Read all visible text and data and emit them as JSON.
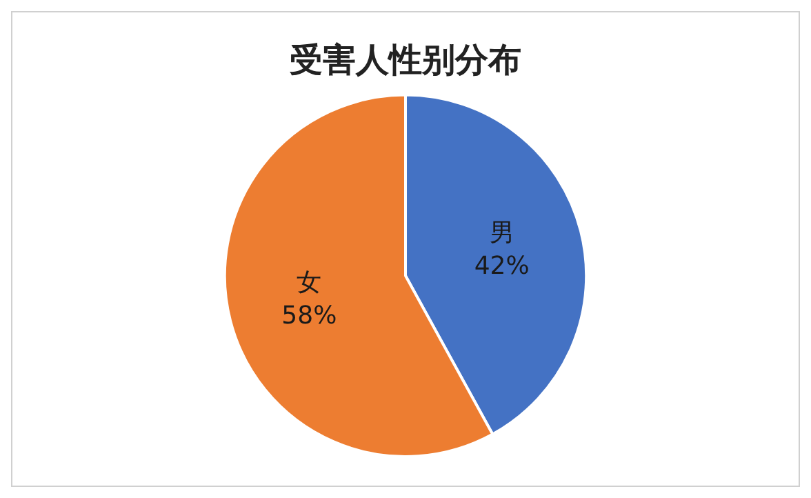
{
  "chart_data": {
    "type": "pie",
    "title": "受害人性别分布",
    "categories": [
      "男",
      "女"
    ],
    "values": [
      42,
      58
    ],
    "value_labels": [
      "42%",
      "58%"
    ],
    "colors": [
      "#4472c4",
      "#ed7d31"
    ],
    "legend": false
  }
}
